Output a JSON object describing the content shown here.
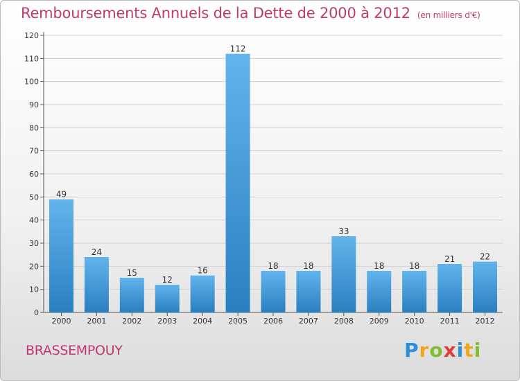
{
  "title": "Remboursements Annuels de la Dette de 2000 à 2012",
  "unit": "(en milliers d'€)",
  "commune": "BRASSEMPOUY",
  "brand": {
    "letters": [
      "P",
      "r",
      "o",
      "x",
      "i",
      "t",
      "i"
    ],
    "colors": [
      "#2f8fd4",
      "#f2a51f",
      "#7fbf2e",
      "#e23c3c",
      "#2f8fd4",
      "#f2a51f",
      "#7fbf2e"
    ]
  },
  "colors": {
    "bar_top": "#62b4ec",
    "bar_bottom": "#2a7fc0",
    "title": "#c0396e"
  },
  "chart_data": {
    "type": "bar",
    "categories": [
      "2000",
      "2001",
      "2002",
      "2003",
      "2004",
      "2005",
      "2006",
      "2007",
      "2008",
      "2009",
      "2010",
      "2011",
      "2012"
    ],
    "values": [
      49,
      24,
      15,
      12,
      16,
      112,
      18,
      18,
      33,
      18,
      18,
      21,
      22
    ],
    "ylim": [
      0,
      120
    ],
    "yticks": [
      0,
      10,
      20,
      30,
      40,
      50,
      60,
      70,
      80,
      90,
      100,
      110,
      120
    ],
    "grid": true,
    "data_labels": true
  }
}
